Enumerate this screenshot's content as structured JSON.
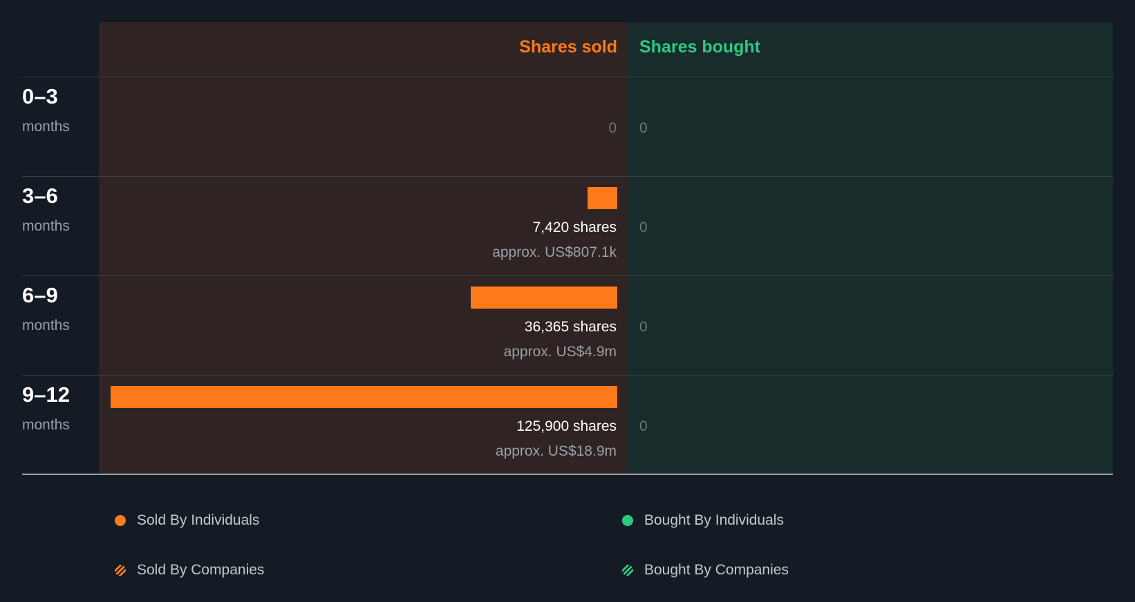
{
  "colors": {
    "sold": "#ff7a1a",
    "bought": "#2fc883",
    "sold_bg": "#2f2423",
    "bought_bg": "#182c2c",
    "page_bg": "#151b24"
  },
  "chart_data": {
    "type": "bar",
    "orientation": "horizontal",
    "headers": {
      "sold": "Shares sold",
      "bought": "Shares bought"
    },
    "categories": [
      "0–3 months",
      "3–6 months",
      "6–9 months",
      "9–12 months"
    ],
    "series": [
      {
        "name": "Shares sold",
        "values": [
          0,
          7420,
          36365,
          125900
        ]
      },
      {
        "name": "Shares bought",
        "values": [
          0,
          0,
          0,
          0
        ]
      }
    ],
    "xlim": [
      0,
      125900
    ],
    "rows": [
      {
        "period": "0–3",
        "unit": "months",
        "sold_shares": 0,
        "sold_label": "",
        "sold_approx": "",
        "sold_zero": "0",
        "bought_shares": 0,
        "bought_label": "0"
      },
      {
        "period": "3–6",
        "unit": "months",
        "sold_shares": 7420,
        "sold_label": "7,420 shares",
        "sold_approx": "approx. US$807.1k",
        "sold_zero": "",
        "bought_shares": 0,
        "bought_label": "0"
      },
      {
        "period": "6–9",
        "unit": "months",
        "sold_shares": 36365,
        "sold_label": "36,365 shares",
        "sold_approx": "approx. US$4.9m",
        "sold_zero": "",
        "bought_shares": 0,
        "bought_label": "0"
      },
      {
        "period": "9–12",
        "unit": "months",
        "sold_shares": 125900,
        "sold_label": "125,900 shares",
        "sold_approx": "approx. US$18.9m",
        "sold_zero": "",
        "bought_shares": 0,
        "bought_label": "0"
      }
    ],
    "legend": [
      {
        "label": "Sold By Individuals",
        "style": "dot",
        "color": "#ff7a1a"
      },
      {
        "label": "Bought By Individuals",
        "style": "dot",
        "color": "#2fc883"
      },
      {
        "label": "Sold By Companies",
        "style": "hatch",
        "color": "#ff7a1a"
      },
      {
        "label": "Bought By Companies",
        "style": "hatch",
        "color": "#2fc883"
      }
    ]
  }
}
